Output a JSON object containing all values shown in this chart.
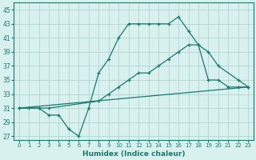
{
  "line1_x": [
    0,
    1,
    2,
    3,
    4,
    5,
    6,
    7,
    8,
    9,
    10,
    11,
    12,
    13,
    14,
    15,
    16,
    17,
    18,
    19,
    20,
    21,
    22,
    23
  ],
  "line1_y": [
    31,
    31,
    31,
    30,
    30,
    28,
    27,
    31,
    36,
    38,
    41,
    43,
    43,
    43,
    43,
    43,
    44,
    42,
    40,
    35,
    35,
    34,
    34,
    34
  ],
  "line2_x": [
    0,
    2,
    3,
    8,
    9,
    10,
    11,
    12,
    13,
    14,
    15,
    16,
    17,
    18,
    19,
    20,
    22,
    23
  ],
  "line2_y": [
    31,
    31,
    31,
    32,
    33,
    34,
    35,
    36,
    36,
    37,
    38,
    39,
    40,
    40,
    39,
    37,
    35,
    34
  ],
  "line3_x": [
    0,
    23
  ],
  "line3_y": [
    31,
    34
  ],
  "line_color": "#1a7a6e",
  "bg_color": "#d8f0ee",
  "grid_color": "#b5d9d6",
  "xlabel": "Humidex (Indice chaleur)",
  "ylabel_ticks": [
    27,
    29,
    31,
    33,
    35,
    37,
    39,
    41,
    43,
    45
  ],
  "xtick_labels": [
    "0",
    "1",
    "2",
    "3",
    "4",
    "5",
    "6",
    "7",
    "8",
    "9",
    "10",
    "11",
    "12",
    "13",
    "14",
    "15",
    "16",
    "17",
    "18",
    "19",
    "20",
    "21",
    "22",
    "23"
  ],
  "ylim": [
    26.5,
    46.0
  ],
  "xlim": [
    -0.5,
    23.5
  ]
}
